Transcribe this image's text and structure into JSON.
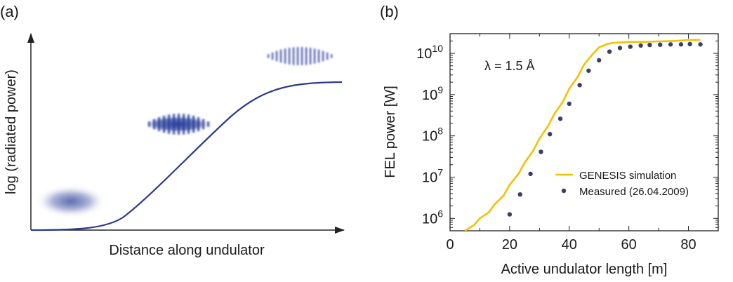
{
  "panel_a": {
    "label": "(a)",
    "xlabel": "Distance along undulator",
    "ylabel": "log (radiated power)"
  },
  "panel_b": {
    "label": "(b)",
    "annotation": "λ = 1.5 Å",
    "legend": {
      "sim": "GENESIS simulation",
      "meas": "Measured (26.04.2009)"
    }
  },
  "colors": {
    "curve_a": "#2e3a8c",
    "simulation": "#f2c200",
    "measured": "#3b3f63",
    "bunch": "#2b3f9a"
  },
  "chart_data": [
    {
      "type": "line",
      "title": "",
      "xlabel": "Distance along undulator",
      "ylabel": "log (radiated power)",
      "axis_ticks": "none",
      "curve": "sigmoid (qualitative)"
    },
    {
      "type": "scatter",
      "title": "",
      "xlabel": "Active undulator length [m]",
      "ylabel": "FEL power [W]",
      "y_scale": "log",
      "xlim": [
        0,
        90
      ],
      "ylim": [
        500000,
        30000000000
      ],
      "x_ticks": [
        0,
        20,
        40,
        60,
        80
      ],
      "y_ticks": [
        {
          "value": 1000000,
          "base": "10",
          "exp": "6"
        },
        {
          "value": 10000000,
          "base": "10",
          "exp": "7"
        },
        {
          "value": 100000000,
          "base": "10",
          "exp": "8"
        },
        {
          "value": 1000000000,
          "base": "10",
          "exp": "9"
        },
        {
          "value": 10000000000,
          "base": "10",
          "exp": "10"
        }
      ],
      "legend_position": "bottom-right",
      "series": [
        {
          "name": "GENESIS simulation",
          "style": "line",
          "x": [
            5,
            8,
            10,
            13,
            15,
            18,
            20,
            23,
            25,
            28,
            30,
            33,
            35,
            38,
            40,
            43,
            45,
            48,
            50,
            53,
            55,
            58,
            60,
            65,
            70,
            75,
            80,
            84
          ],
          "y": [
            500000,
            680000,
            1000000,
            1400000,
            2200000,
            3600000,
            6500000,
            12000000,
            22000000,
            45000000,
            85000000,
            180000000,
            340000000,
            700000000,
            1400000000,
            2800000000,
            5400000000,
            9800000000,
            14000000000,
            17000000000,
            18000000000,
            18500000000,
            19000000000,
            19000000000,
            19500000000,
            20000000000,
            21000000000,
            21000000000
          ]
        },
        {
          "name": "Measured (26.04.2009)",
          "style": "points",
          "x": [
            20,
            23.5,
            27,
            30.5,
            33.5,
            37,
            40,
            43.5,
            46.5,
            50,
            53.5,
            57,
            60.5,
            64,
            67,
            70.5,
            74,
            77.5,
            80.5,
            84
          ],
          "y": [
            1250000,
            3800000,
            12000000,
            41000000,
            110000000,
            260000000,
            600000000,
            1700000000,
            3800000000,
            6800000000,
            11000000000,
            13500000000,
            14500000000,
            15500000000,
            16000000000,
            16200000000,
            16500000000,
            16500000000,
            16800000000,
            16500000000
          ]
        }
      ]
    }
  ]
}
